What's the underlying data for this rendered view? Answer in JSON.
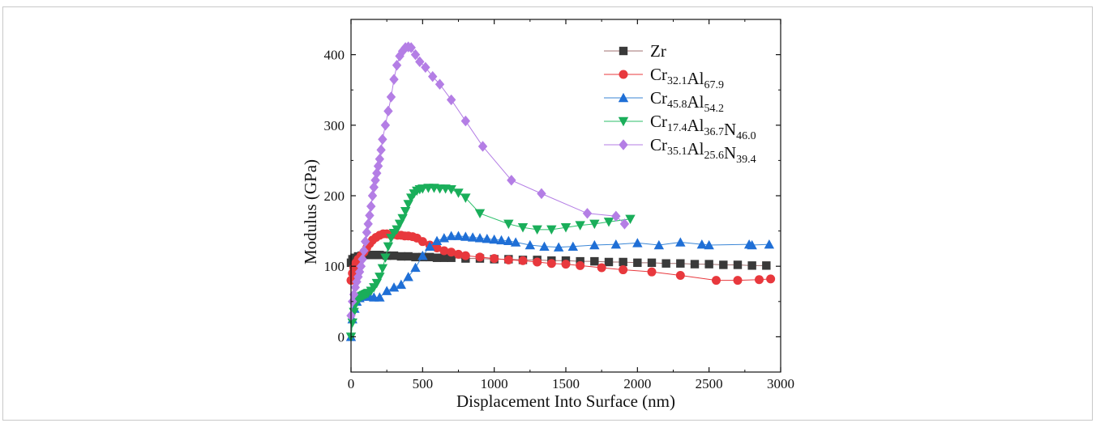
{
  "chart_data": {
    "type": "scatter",
    "xlabel": "Displacement Into Surface (nm)",
    "ylabel": "Modulus (GPa)",
    "xlim": [
      0,
      3000
    ],
    "ylim": [
      -50,
      450
    ],
    "xticks": [
      "0",
      "500",
      "1000",
      "1500",
      "2000",
      "2500",
      "3000"
    ],
    "yticks": [
      "0",
      "100",
      "200",
      "300",
      "400"
    ],
    "legend_position": "top-right",
    "grid": false,
    "series": [
      {
        "name": "Zr",
        "legend_parts": [
          {
            "t": "Zr",
            "sub": ""
          }
        ],
        "marker": "square",
        "color": "#3a3a3a",
        "line_color": "#a07070",
        "x": [
          0,
          10,
          25,
          50,
          75,
          100,
          125,
          150,
          175,
          200,
          250,
          300,
          350,
          400,
          450,
          500,
          550,
          600,
          650,
          700,
          800,
          900,
          1000,
          1100,
          1200,
          1300,
          1400,
          1500,
          1600,
          1700,
          1800,
          1900,
          2000,
          2100,
          2200,
          2300,
          2400,
          2500,
          2600,
          2700,
          2800,
          2900
        ],
        "y": [
          105,
          110,
          112,
          114,
          115,
          116,
          116,
          116,
          116,
          116,
          115,
          115,
          114,
          114,
          113,
          113,
          113,
          112,
          112,
          112,
          111,
          111,
          110,
          110,
          109,
          109,
          108,
          108,
          107,
          107,
          106,
          106,
          105,
          105,
          104,
          104,
          103,
          103,
          102,
          102,
          101,
          101
        ]
      },
      {
        "name": "Cr32.1Al67.9",
        "legend_parts": [
          {
            "t": "Cr",
            "sub": "32.1"
          },
          {
            "t": "Al",
            "sub": "67.9"
          }
        ],
        "marker": "circle",
        "color": "#e8383d",
        "line_color": "#e8383d",
        "x": [
          0,
          10,
          20,
          35,
          50,
          70,
          90,
          110,
          130,
          150,
          175,
          200,
          225,
          250,
          275,
          300,
          325,
          350,
          375,
          400,
          430,
          460,
          500,
          550,
          600,
          650,
          700,
          750,
          800,
          900,
          1000,
          1100,
          1200,
          1300,
          1400,
          1500,
          1600,
          1750,
          1900,
          2100,
          2300,
          2550,
          2700,
          2850,
          2930
        ],
        "y": [
          80,
          90,
          98,
          105,
          110,
          115,
          120,
          126,
          132,
          137,
          141,
          144,
          146,
          146,
          145,
          145,
          144,
          144,
          143,
          143,
          142,
          140,
          135,
          130,
          126,
          122,
          120,
          117,
          115,
          113,
          111,
          109,
          108,
          106,
          104,
          103,
          101,
          98,
          95,
          92,
          87,
          80,
          80,
          81,
          82
        ]
      },
      {
        "name": "Cr45.8Al54.2",
        "legend_parts": [
          {
            "t": "Cr",
            "sub": "45.8"
          },
          {
            "t": "Al",
            "sub": "54.2"
          }
        ],
        "marker": "triangle-up",
        "color": "#1f6fd6",
        "line_color": "#3a86d6",
        "x": [
          0,
          10,
          25,
          40,
          60,
          80,
          100,
          130,
          160,
          200,
          250,
          300,
          350,
          400,
          450,
          500,
          550,
          600,
          650,
          700,
          750,
          800,
          850,
          900,
          950,
          1000,
          1050,
          1100,
          1150,
          1250,
          1350,
          1450,
          1550,
          1700,
          1850,
          2000,
          2150,
          2300,
          2450,
          2500,
          2780,
          2800,
          2920
        ],
        "y": [
          0,
          25,
          40,
          50,
          55,
          57,
          58,
          57,
          56,
          56,
          65,
          70,
          74,
          85,
          98,
          115,
          128,
          136,
          140,
          143,
          143,
          142,
          141,
          140,
          139,
          138,
          137,
          136,
          134,
          130,
          128,
          127,
          128,
          130,
          131,
          133,
          130,
          134,
          131,
          130,
          131,
          130,
          131
        ]
      },
      {
        "name": "Cr17.4Al36.7N46.0",
        "legend_parts": [
          {
            "t": "Cr",
            "sub": "17.4"
          },
          {
            "t": "Al",
            "sub": "36.7"
          },
          {
            "t": "N",
            "sub": "46.0"
          }
        ],
        "marker": "triangle-down",
        "color": "#1aae5a",
        "line_color": "#2bbf6a",
        "x": [
          0,
          10,
          20,
          30,
          40,
          50,
          60,
          70,
          80,
          90,
          100,
          110,
          120,
          140,
          160,
          180,
          200,
          220,
          240,
          260,
          280,
          300,
          320,
          340,
          360,
          380,
          400,
          420,
          440,
          460,
          480,
          500,
          540,
          580,
          620,
          660,
          700,
          750,
          800,
          900,
          1100,
          1200,
          1300,
          1400,
          1500,
          1600,
          1700,
          1800,
          1950
        ],
        "y": [
          0,
          20,
          35,
          45,
          50,
          53,
          55,
          57,
          58,
          59,
          60,
          61,
          62,
          65,
          70,
          76,
          85,
          97,
          112,
          128,
          140,
          147,
          152,
          160,
          168,
          178,
          188,
          197,
          203,
          207,
          209,
          210,
          211,
          211,
          210,
          210,
          209,
          204,
          197,
          175,
          160,
          155,
          152,
          152,
          155,
          158,
          160,
          163,
          167
        ]
      },
      {
        "name": "Cr35.1Al25.6N39.4",
        "legend_parts": [
          {
            "t": "Cr",
            "sub": "35.1"
          },
          {
            "t": "Al",
            "sub": "25.6"
          },
          {
            "t": "N",
            "sub": "39.4"
          }
        ],
        "marker": "diamond",
        "color": "#b47ee5",
        "line_color": "#b47ee5",
        "x": [
          0,
          10,
          20,
          30,
          40,
          50,
          60,
          70,
          80,
          90,
          100,
          110,
          120,
          130,
          140,
          150,
          160,
          170,
          180,
          190,
          200,
          210,
          220,
          240,
          260,
          280,
          300,
          320,
          340,
          360,
          380,
          400,
          420,
          450,
          480,
          520,
          570,
          620,
          700,
          800,
          920,
          1120,
          1330,
          1650,
          1850,
          1910
        ],
        "y": [
          30,
          50,
          60,
          70,
          78,
          85,
          92,
          100,
          110,
          122,
          135,
          148,
          160,
          172,
          185,
          200,
          212,
          222,
          232,
          242,
          252,
          265,
          280,
          300,
          320,
          340,
          365,
          385,
          398,
          405,
          410,
          411,
          410,
          400,
          390,
          382,
          369,
          358,
          336,
          306,
          270,
          222,
          203,
          175,
          171,
          160
        ]
      }
    ]
  }
}
